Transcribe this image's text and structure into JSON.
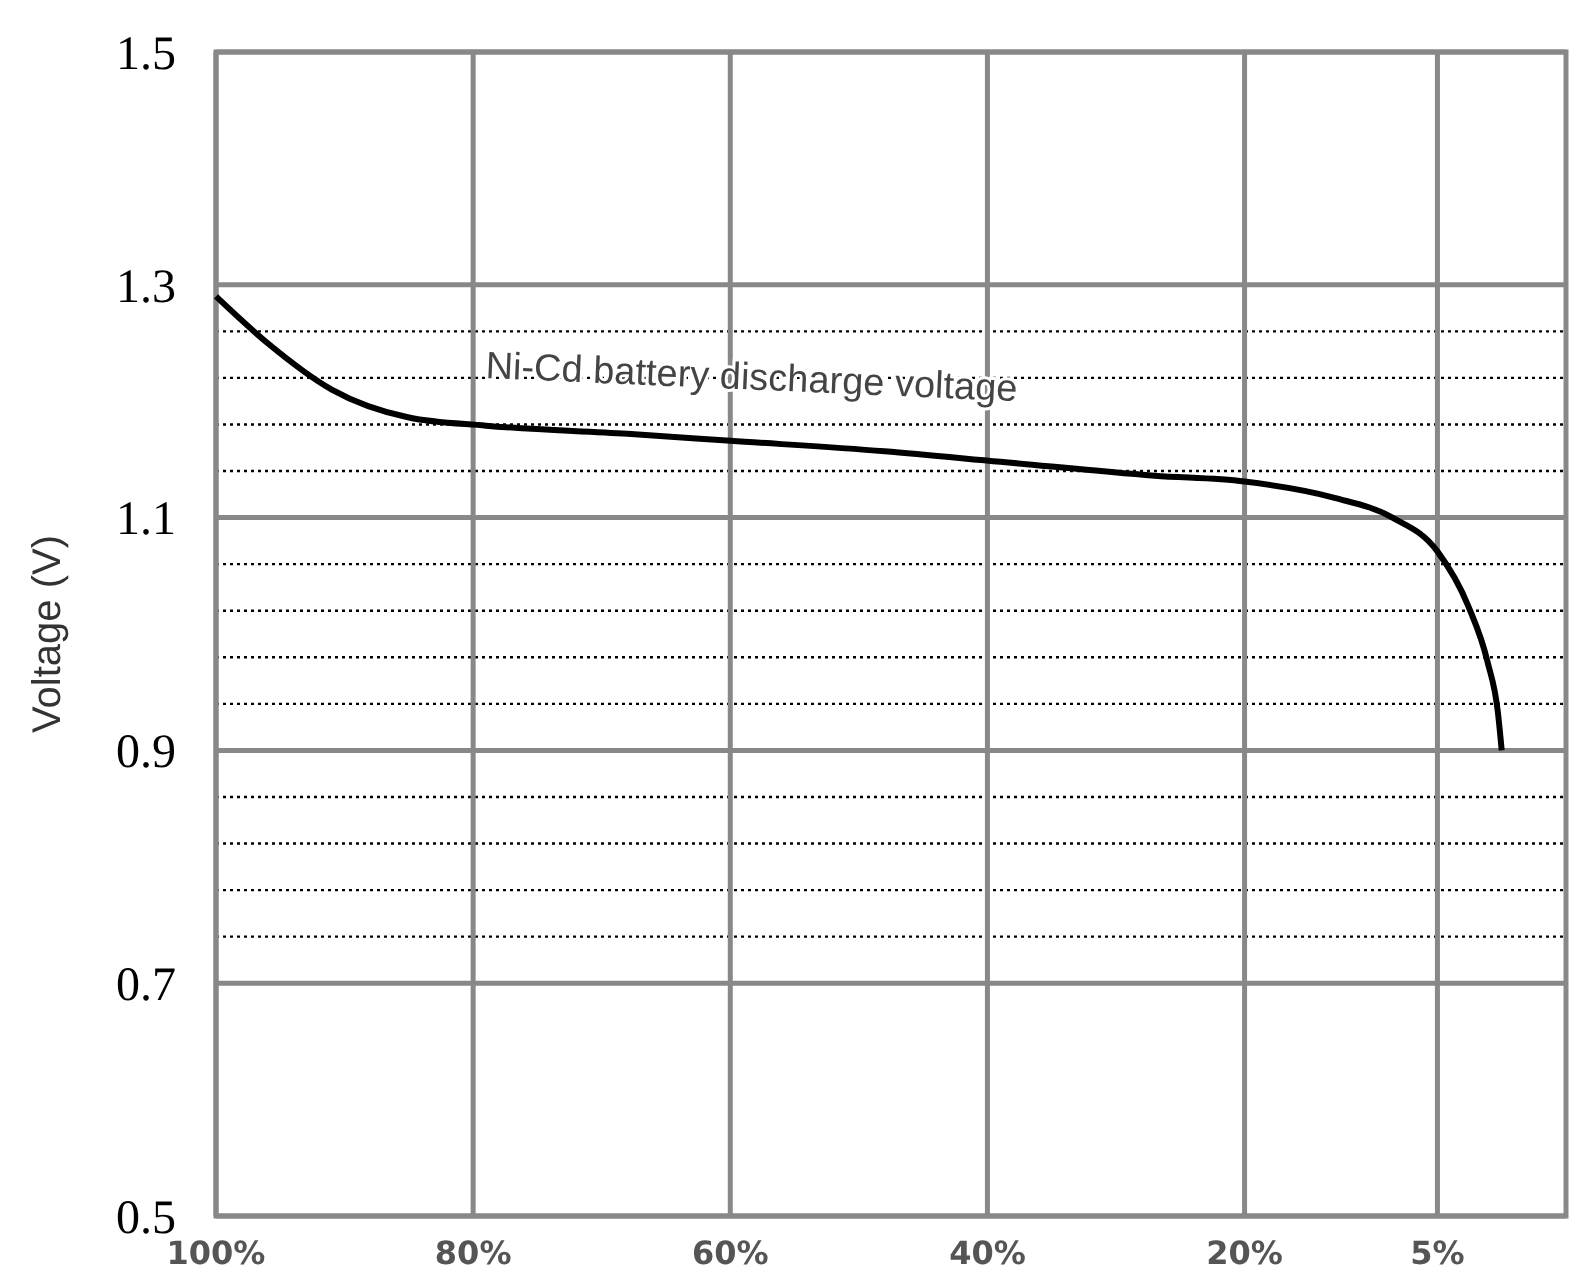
{
  "chart_data": {
    "type": "line",
    "ylabel": "Voltage (V)",
    "annotations": [
      "Ni-Cd battery discharge voltage"
    ],
    "x": [
      100,
      96,
      91,
      85,
      79,
      68,
      60,
      48,
      39,
      27,
      20,
      13,
      8.5,
      5,
      2.6,
      1.1,
      0.3,
      0
    ],
    "values": [
      1.29,
      1.25,
      1.21,
      1.186,
      1.179,
      1.172,
      1.166,
      1.157,
      1.148,
      1.136,
      1.131,
      1.117,
      1.1,
      1.071,
      1.024,
      0.976,
      0.933,
      0.9
    ],
    "color": "#000000",
    "marker": "none",
    "line_style": "solid",
    "grid": true,
    "xlim": [
      100,
      -5
    ],
    "xticks": [
      {
        "value": 100,
        "label": "100%"
      },
      {
        "value": 80,
        "label": "80%"
      },
      {
        "value": 60,
        "label": "60%"
      },
      {
        "value": 40,
        "label": "40%"
      },
      {
        "value": 20,
        "label": "20%"
      },
      {
        "value": 5,
        "label": "5%"
      }
    ],
    "ylim": [
      0.5,
      1.5
    ],
    "yticks": [
      0.5,
      0.7,
      {
        "value": 0.74,
        "label": null
      },
      {
        "value": 0.78,
        "label": null
      },
      {
        "value": 0.82,
        "label": null
      },
      {
        "value": 0.86,
        "label": null
      },
      0.9,
      {
        "value": 0.94,
        "label": null
      },
      {
        "value": 0.98,
        "label": null
      },
      {
        "value": 1.02,
        "label": null
      },
      {
        "value": 1.06,
        "label": null
      },
      1.1,
      {
        "value": 1.14,
        "label": null
      },
      {
        "value": 1.18,
        "label": null
      },
      {
        "value": 1.22,
        "label": null
      },
      {
        "value": 1.26,
        "label": null
      },
      1.3,
      1.5
    ]
  }
}
